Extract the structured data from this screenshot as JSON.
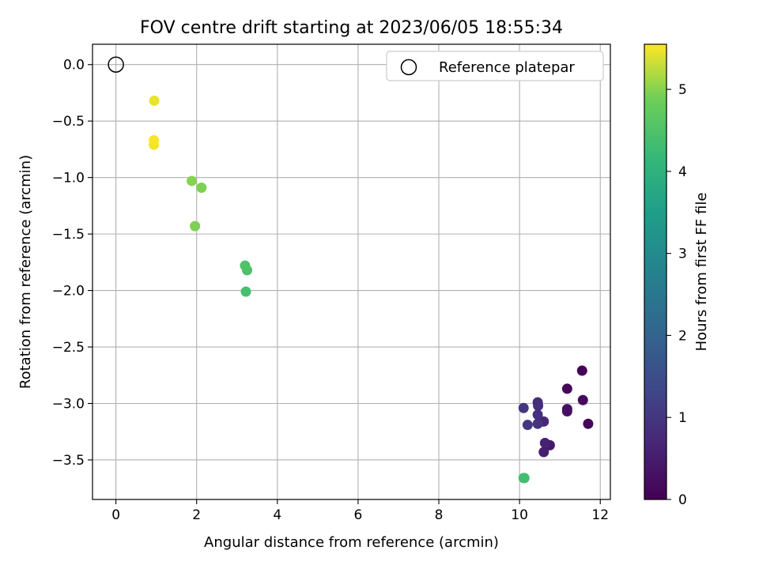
{
  "chart_data": {
    "type": "scatter",
    "title": "FOV centre drift starting at 2023/06/05 18:55:34",
    "xlabel": "Angular distance from reference (arcmin)",
    "ylabel": "Rotation from reference (arcmin)",
    "xlim": [
      -0.58,
      12.25
    ],
    "ylim": [
      -3.85,
      0.18
    ],
    "xticks": [
      0,
      2,
      4,
      6,
      8,
      10,
      12
    ],
    "xtick_labels": [
      "0",
      "2",
      "4",
      "6",
      "8",
      "10",
      "12"
    ],
    "yticks": [
      0.0,
      -0.5,
      -1.0,
      -1.5,
      -2.0,
      -2.5,
      -3.0,
      -3.5
    ],
    "ytick_labels": [
      "0.0",
      "−0.5",
      "−1.0",
      "−1.5",
      "−2.0",
      "−2.5",
      "−3.0",
      "−3.5"
    ],
    "grid": true,
    "legend": {
      "position": "top-right",
      "entries": [
        "Reference platepar"
      ]
    },
    "reference_point": {
      "x": 0,
      "y": 0,
      "marker": "open-circle"
    },
    "colorbar": {
      "label": "Hours from first FF file",
      "colormap": "viridis",
      "range": [
        0,
        5.55
      ],
      "ticks": [
        0,
        1,
        2,
        3,
        4,
        5
      ],
      "tick_labels": [
        "0",
        "1",
        "2",
        "3",
        "4",
        "5"
      ]
    },
    "points": [
      {
        "x": 11.55,
        "y": -2.71,
        "hours": 0.05
      },
      {
        "x": 11.18,
        "y": -2.87,
        "hours": 0.15
      },
      {
        "x": 11.57,
        "y": -2.97,
        "hours": 0.2
      },
      {
        "x": 11.18,
        "y": -3.05,
        "hours": 0.25
      },
      {
        "x": 11.18,
        "y": -3.07,
        "hours": 0.3
      },
      {
        "x": 11.7,
        "y": -3.18,
        "hours": 0.1
      },
      {
        "x": 10.75,
        "y": -3.37,
        "hours": 0.45
      },
      {
        "x": 10.6,
        "y": -3.43,
        "hours": 0.55
      },
      {
        "x": 10.63,
        "y": -3.35,
        "hours": 0.6
      },
      {
        "x": 10.6,
        "y": -3.16,
        "hours": 0.7
      },
      {
        "x": 10.45,
        "y": -2.99,
        "hours": 0.8
      },
      {
        "x": 10.46,
        "y": -3.02,
        "hours": 0.85
      },
      {
        "x": 10.45,
        "y": -3.1,
        "hours": 0.9
      },
      {
        "x": 10.45,
        "y": -3.18,
        "hours": 0.95
      },
      {
        "x": 10.2,
        "y": -3.19,
        "hours": 1.0
      },
      {
        "x": 10.1,
        "y": -3.04,
        "hours": 1.05
      },
      {
        "x": 10.12,
        "y": -3.66,
        "hours": 4.3
      },
      {
        "x": 10.1,
        "y": -3.66,
        "hours": 4.35
      },
      {
        "x": 3.22,
        "y": -2.01,
        "hours": 4.4
      },
      {
        "x": 3.25,
        "y": -1.82,
        "hours": 4.45
      },
      {
        "x": 3.2,
        "y": -1.78,
        "hours": 4.5
      },
      {
        "x": 1.96,
        "y": -1.43,
        "hours": 4.95
      },
      {
        "x": 2.12,
        "y": -1.09,
        "hours": 4.95
      },
      {
        "x": 1.88,
        "y": -1.03,
        "hours": 5.0
      },
      {
        "x": 0.94,
        "y": -0.71,
        "hours": 5.5
      },
      {
        "x": 0.94,
        "y": -0.67,
        "hours": 5.52
      },
      {
        "x": 0.95,
        "y": -0.32,
        "hours": 5.45
      }
    ]
  }
}
